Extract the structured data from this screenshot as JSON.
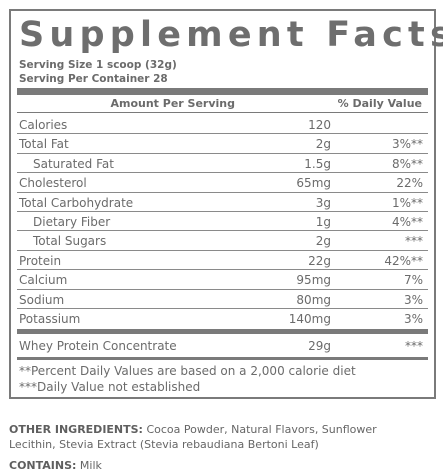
{
  "title": "Supplement Facts",
  "serving_size": "Serving Size 1 scoop (32g)",
  "servings_per_container": "Serving Per Container 28",
  "headers": {
    "amount": "Amount Per Serving",
    "dv": "% Daily Value"
  },
  "rows": [
    {
      "name": "Calories",
      "amount": "120",
      "dv": ""
    },
    {
      "name": "Total Fat",
      "amount": "2g",
      "dv": "3%**"
    },
    {
      "name": "Saturated Fat",
      "amount": "1.5g",
      "dv": "8%**"
    },
    {
      "name": "Cholesterol",
      "amount": "65mg",
      "dv": "22%"
    },
    {
      "name": "Total Carbohydrate",
      "amount": "3g",
      "dv": "1%**"
    },
    {
      "name": "Dietary Fiber",
      "amount": "1g",
      "dv": "4%**"
    },
    {
      "name": "Total Sugars",
      "amount": "2g",
      "dv": "***"
    },
    {
      "name": "Protein",
      "amount": "22g",
      "dv": "42%**"
    },
    {
      "name": "Calcium",
      "amount": "95mg",
      "dv": "7%"
    },
    {
      "name": "Sodium",
      "amount": "80mg",
      "dv": "3%"
    },
    {
      "name": "Potassium",
      "amount": "140mg",
      "dv": "3%"
    }
  ],
  "blend": {
    "name": "Whey Protein Concentrate",
    "amount": "29g",
    "dv": "***"
  },
  "footnotes": [
    "**Percent Daily Values are based on a 2,000 calorie diet",
    "***Daily Value not established"
  ],
  "other_ingredients": {
    "label": "OTHER INGREDIENTS:",
    "line1": "Cocoa Powder, Natural Flavors, Sunflower",
    "line2": "Lecithin, Stevia Extract (Stevia rebaudiana Bertoni Leaf)"
  },
  "contains": {
    "label": "CONTAINS:",
    "value": "Milk"
  }
}
